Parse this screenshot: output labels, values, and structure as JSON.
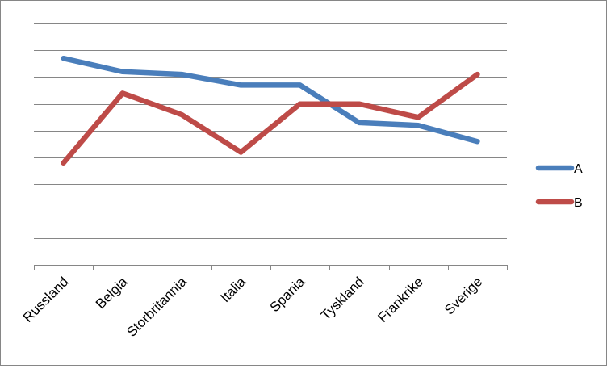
{
  "chart_data": {
    "type": "line",
    "title": "",
    "xlabel": "",
    "ylabel": "",
    "categories": [
      "Russland",
      "Belgia",
      "Storbritannia",
      "Italia",
      "Spania",
      "Tyskland",
      "Frankrike",
      "Sverige"
    ],
    "ylim": [
      0,
      9
    ],
    "y_ticks_shown": false,
    "grid": true,
    "legend_position": "right",
    "series": [
      {
        "name": "A",
        "color": "#4A7EBB",
        "values": [
          7.7,
          7.2,
          7.1,
          6.7,
          6.7,
          5.3,
          5.2,
          4.6
        ]
      },
      {
        "name": "B",
        "color": "#BE4B48",
        "values": [
          3.8,
          6.4,
          5.6,
          4.2,
          6.0,
          6.0,
          5.5,
          7.1
        ]
      }
    ]
  }
}
